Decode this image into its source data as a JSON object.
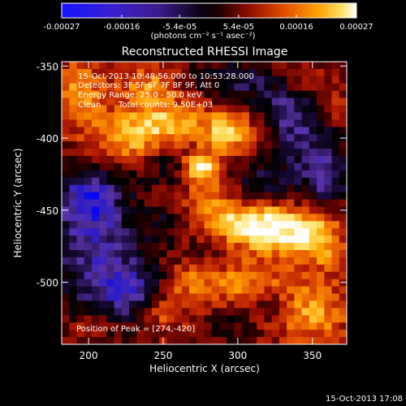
{
  "colorbar": {
    "tick_labels": [
      "-0.00027",
      "-0.00016",
      "-5.4e-05",
      "5.4e-05",
      "0.00016",
      "0.00027"
    ],
    "tick_values": [
      -0.00027,
      -0.00016,
      -5.4e-05,
      5.4e-05,
      0.00016,
      0.00027
    ],
    "range": [
      -0.00027,
      0.00027
    ],
    "unit_label": "(photons cm⁻² s⁻¹ asec⁻²)"
  },
  "header": {
    "time_range": "15-Oct-2013 10:48:56.000 to 10:53:28.000",
    "detectors": "Detectors: 3F 5F 6F 7F 8F 9F, Att 0",
    "energy": "Energy Range: 25.0 - 50.0 keV",
    "clean": "Clean",
    "total_counts": "Total counts: 9.50E+03"
  },
  "peak_label": "Position of Peak = [274,-420]",
  "footer_timestamp": "15-Oct-2013 17:08",
  "chart_data": {
    "type": "heatmap",
    "title": "Reconstructed RHESSI Image",
    "xlabel": "Heliocentric X (arcsec)",
    "ylabel": "Heliocentric Y (arcsec)",
    "xlim": [
      182,
      373
    ],
    "ylim": [
      -543,
      -347
    ],
    "xticks": [
      200,
      250,
      300,
      350
    ],
    "yticks": [
      -500,
      -450,
      -400,
      -350
    ],
    "xtick_labels": [
      "200",
      "250",
      "300",
      "350"
    ],
    "ytick_labels": [
      "-500",
      "-450",
      "-400",
      "-350"
    ],
    "peak": [
      274,
      -420
    ],
    "colormap": [
      "#0000ff",
      "#2a1ac8",
      "#5a33a8",
      "#1a0a3a",
      "#000000",
      "#5a0000",
      "#b01800",
      "#e85a00",
      "#ffa000",
      "#ffe060",
      "#ffffff"
    ],
    "grid_cols": 38,
    "grid_rows": 39,
    "blobs": [
      {
        "x": 205,
        "y": -480,
        "sx": 22,
        "sy": 35,
        "v": -0.00018
      },
      {
        "x": 200,
        "y": -440,
        "sx": 14,
        "sy": 14,
        "v": -0.00016
      },
      {
        "x": 230,
        "y": -505,
        "sx": 15,
        "sy": 14,
        "v": -0.00014
      },
      {
        "x": 345,
        "y": -400,
        "sx": 18,
        "sy": 28,
        "v": -0.00014
      },
      {
        "x": 360,
        "y": -430,
        "sx": 10,
        "sy": 15,
        "v": -0.00012
      },
      {
        "x": 300,
        "y": -360,
        "sx": 22,
        "sy": 10,
        "v": -0.00013
      },
      {
        "x": 325,
        "y": -380,
        "sx": 14,
        "sy": 12,
        "v": -0.0001
      },
      {
        "x": 255,
        "y": -420,
        "sx": 14,
        "sy": 10,
        "v": -9e-05
      },
      {
        "x": 315,
        "y": -430,
        "sx": 12,
        "sy": 9,
        "v": -0.0001
      },
      {
        "x": 250,
        "y": -460,
        "sx": 9,
        "sy": 9,
        "v": -8e-05
      },
      {
        "x": 280,
        "y": -475,
        "sx": 12,
        "sy": 9,
        "v": -6e-05
      },
      {
        "x": 320,
        "y": -510,
        "sx": 12,
        "sy": 10,
        "v": -8e-05
      },
      {
        "x": 290,
        "y": -530,
        "sx": 14,
        "sy": 8,
        "v": -6e-05
      },
      {
        "x": 225,
        "y": -400,
        "sx": 16,
        "sy": 12,
        "v": 0.00016
      },
      {
        "x": 255,
        "y": -390,
        "sx": 16,
        "sy": 10,
        "v": 0.00016
      },
      {
        "x": 274,
        "y": -420,
        "sx": 8,
        "sy": 7,
        "v": 0.00026
      },
      {
        "x": 290,
        "y": -400,
        "sx": 8,
        "sy": 8,
        "v": 0.00012
      },
      {
        "x": 300,
        "y": -390,
        "sx": 14,
        "sy": 12,
        "v": 0.00012
      },
      {
        "x": 195,
        "y": -370,
        "sx": 10,
        "sy": 16,
        "v": 0.00014
      },
      {
        "x": 240,
        "y": -365,
        "sx": 14,
        "sy": 10,
        "v": 0.00012
      },
      {
        "x": 300,
        "y": -460,
        "sx": 20,
        "sy": 10,
        "v": 0.00018
      },
      {
        "x": 330,
        "y": -465,
        "sx": 18,
        "sy": 12,
        "v": 0.0002
      },
      {
        "x": 280,
        "y": -440,
        "sx": 10,
        "sy": 10,
        "v": 0.0001
      },
      {
        "x": 355,
        "y": -470,
        "sx": 10,
        "sy": 14,
        "v": 0.00014
      },
      {
        "x": 310,
        "y": -500,
        "sx": 18,
        "sy": 10,
        "v": 0.00014
      },
      {
        "x": 350,
        "y": -520,
        "sx": 16,
        "sy": 14,
        "v": 0.00014
      },
      {
        "x": 250,
        "y": -520,
        "sx": 10,
        "sy": 10,
        "v": 0.0001
      },
      {
        "x": 270,
        "y": -500,
        "sx": 12,
        "sy": 10,
        "v": 0.0001
      },
      {
        "x": 340,
        "y": -360,
        "sx": 14,
        "sy": 8,
        "v": 8e-05
      },
      {
        "x": 365,
        "y": -380,
        "sx": 6,
        "sy": 10,
        "v": 0.0001
      },
      {
        "x": 200,
        "y": -530,
        "sx": 12,
        "sy": 8,
        "v": 8e-05
      }
    ]
  }
}
